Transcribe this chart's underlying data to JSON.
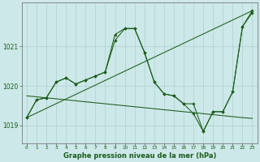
{
  "title": "Graphe pression niveau de la mer (hPa)",
  "bg_color": "#cde8e8",
  "grid_color": "#b0d0d0",
  "line_color": "#1a5c1a",
  "xlim": [
    -0.5,
    23.5
  ],
  "ylim": [
    1018.55,
    1022.1
  ],
  "yticks": [
    1019,
    1020,
    1021
  ],
  "xticks": [
    0,
    1,
    2,
    3,
    4,
    5,
    6,
    7,
    8,
    9,
    10,
    11,
    12,
    13,
    14,
    15,
    16,
    17,
    18,
    19,
    20,
    21,
    22,
    23
  ],
  "series1_x": [
    0,
    1,
    2,
    3,
    4,
    5,
    6,
    7,
    8,
    9,
    10,
    11,
    12,
    13,
    14,
    15,
    16,
    17,
    18,
    19,
    20,
    21,
    22,
    23
  ],
  "series1_y": [
    1019.2,
    1019.65,
    1019.7,
    1020.1,
    1020.2,
    1020.05,
    1020.15,
    1020.25,
    1020.35,
    1021.3,
    1021.45,
    1021.45,
    1020.85,
    1020.1,
    1019.8,
    1019.75,
    1019.55,
    1019.55,
    1018.85,
    1019.35,
    1019.35,
    1019.85,
    1021.5,
    1021.9
  ],
  "series2_x": [
    0,
    1,
    2,
    3,
    4,
    5,
    6,
    7,
    8,
    9,
    10,
    11,
    12,
    13,
    14,
    15,
    16,
    17,
    18,
    19,
    20,
    21,
    22,
    23
  ],
  "series2_y": [
    1019.2,
    1019.65,
    1019.7,
    1020.1,
    1020.2,
    1020.05,
    1020.15,
    1020.25,
    1020.35,
    1021.15,
    1021.45,
    1021.45,
    1020.85,
    1020.1,
    1019.8,
    1019.75,
    1019.55,
    1019.3,
    1018.85,
    1019.35,
    1019.35,
    1019.85,
    1021.5,
    1021.85
  ],
  "series3_x": [
    0,
    2,
    4,
    6,
    8,
    10,
    12,
    14,
    16,
    18,
    20,
    22,
    23
  ],
  "series3_y": [
    1019.75,
    1019.7,
    1019.65,
    1019.6,
    1019.55,
    1019.5,
    1019.45,
    1019.4,
    1019.35,
    1019.3,
    1019.25,
    1019.2,
    1019.18
  ],
  "series4_x": [
    0,
    23
  ],
  "series4_y": [
    1019.2,
    1021.9
  ]
}
